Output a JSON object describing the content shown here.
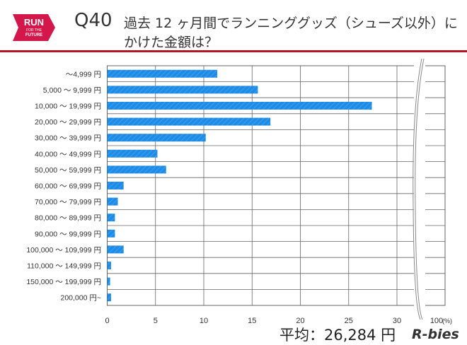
{
  "header": {
    "logo_text": "RUN FOR THE FUTURE",
    "question_number": "Q40",
    "title_line1": "過去 12 ヶ月間でランニンググッズ（シューズ以外）に",
    "title_line2": "かけた金額は？"
  },
  "footer": {
    "average": "平均：26,284 円",
    "brand": "R-bies"
  },
  "chart_data": {
    "type": "bar",
    "orientation": "horizontal",
    "categories": [
      "～4,999 円",
      "5,000 ～ 9,999 円",
      "10,000 ～ 19,999 円",
      "20,000 ～ 29,999 円",
      "30,000 ～ 39,999 円",
      "40,000 ～ 49,999 円",
      "50,000 ～ 59,999 円",
      "60,000 ～ 69,999 円",
      "70,000 ～ 79,999 円",
      "80,000 ～ 89,999 円",
      "90,000 ～ 99,999 円",
      "100,000 ～ 109,999 円",
      "110,000 ～ 149,999 円",
      "150,000 ～ 199,999 円",
      "200,000 円~"
    ],
    "values": [
      11.4,
      15.6,
      27.4,
      16.9,
      10.2,
      5.2,
      6.1,
      1.7,
      1.1,
      0.8,
      0.8,
      1.7,
      0.4,
      0.3,
      0.4
    ],
    "xticks": [
      "0",
      "5",
      "10",
      "15",
      "20",
      "25",
      "30",
      "100"
    ],
    "xunit": "(%)",
    "xlim": [
      0,
      100
    ],
    "axis_break": [
      30,
      100
    ],
    "grid": true,
    "bar_color": "#1e8ce6"
  }
}
